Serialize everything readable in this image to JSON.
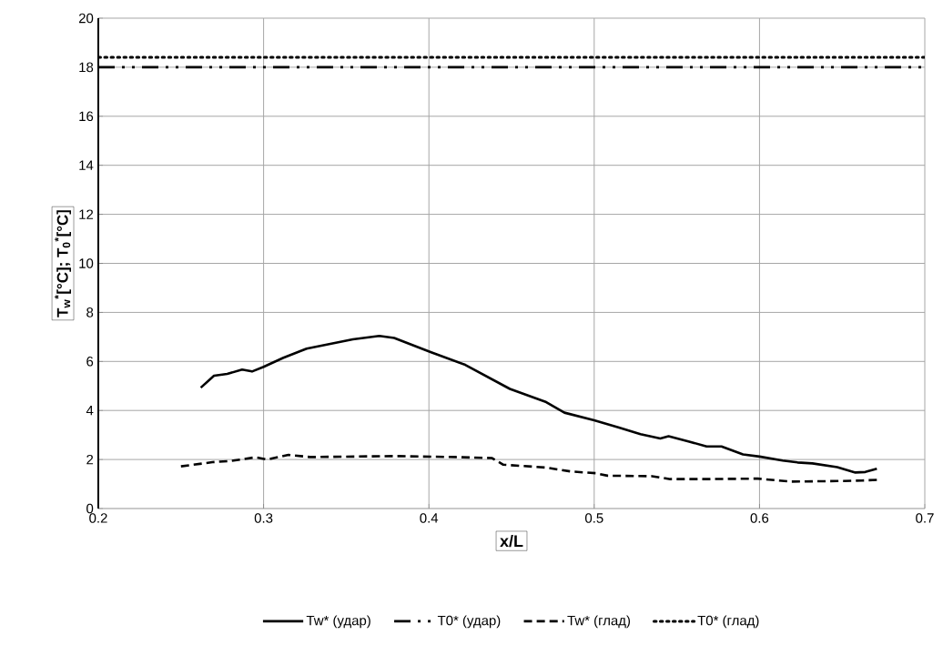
{
  "chart_data": {
    "type": "line",
    "xlabel": "x/L",
    "ylabel": "T$_{w}$$^{*}$[°C]; T$_{0}$$^{*}$[°C]",
    "xlim": [
      0.2,
      0.7
    ],
    "ylim": [
      0,
      20
    ],
    "xticks": [
      0.2,
      0.3,
      0.4,
      0.5,
      0.6,
      0.7
    ],
    "yticks": [
      0,
      2,
      4,
      6,
      8,
      10,
      12,
      14,
      16,
      18,
      20
    ],
    "grid": true,
    "legend": "bottom",
    "marker": "none",
    "series": [
      {
        "name": "Tw* (удар)",
        "color": "#000000",
        "line_style": "solid",
        "x": [
          0.262,
          0.27,
          0.278,
          0.287,
          0.293,
          0.3,
          0.312,
          0.326,
          0.354,
          0.37,
          0.379,
          0.401,
          0.422,
          0.449,
          0.471,
          0.482,
          0.5,
          0.515,
          0.528,
          0.54,
          0.545,
          0.557,
          0.568,
          0.577,
          0.59,
          0.6,
          0.614,
          0.623,
          0.632,
          0.647,
          0.658,
          0.664,
          0.671
        ],
        "values": [
          4.93,
          5.42,
          5.49,
          5.67,
          5.59,
          5.78,
          6.15,
          6.52,
          6.9,
          7.04,
          6.96,
          6.38,
          5.86,
          4.88,
          4.34,
          3.91,
          3.6,
          3.3,
          3.03,
          2.86,
          2.95,
          2.74,
          2.53,
          2.53,
          2.21,
          2.12,
          1.96,
          1.88,
          1.84,
          1.69,
          1.47,
          1.49,
          1.62
        ]
      },
      {
        "name": "T0* (удар)",
        "color": "#000000",
        "line_style": "dashdot",
        "x": [
          0.2,
          0.7
        ],
        "values": [
          18,
          18
        ]
      },
      {
        "name": "Tw* (глад)",
        "color": "#000000",
        "line_style": "dashed",
        "x": [
          0.25,
          0.269,
          0.28,
          0.295,
          0.302,
          0.315,
          0.328,
          0.379,
          0.416,
          0.438,
          0.445,
          0.471,
          0.486,
          0.501,
          0.508,
          0.535,
          0.546,
          0.566,
          0.599,
          0.619,
          0.647,
          0.662,
          0.671
        ],
        "values": [
          1.72,
          1.89,
          1.94,
          2.09,
          2.0,
          2.19,
          2.1,
          2.14,
          2.1,
          2.06,
          1.79,
          1.67,
          1.51,
          1.44,
          1.34,
          1.32,
          1.2,
          1.2,
          1.22,
          1.1,
          1.12,
          1.14,
          1.17
        ]
      },
      {
        "name": "T0* (глад)",
        "color": "#000000",
        "line_style": "dotted",
        "x": [
          0.2,
          0.7
        ],
        "values": [
          18.4,
          18.4
        ]
      }
    ]
  }
}
